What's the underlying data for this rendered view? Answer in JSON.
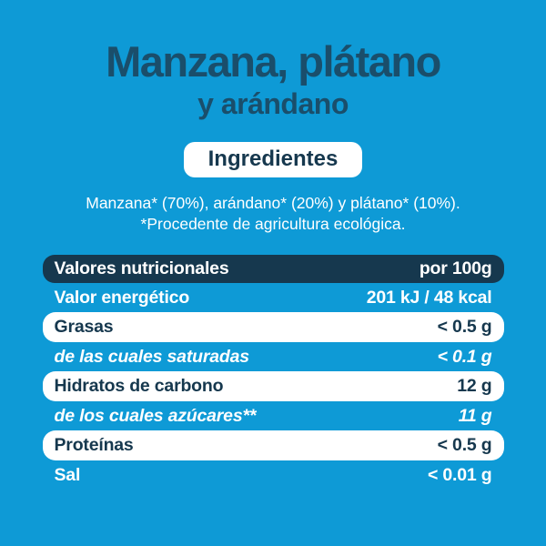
{
  "colors": {
    "background": "#0E9AD6",
    "navy": "#16384E",
    "title_text": "#1A4E6B",
    "white": "#FFFFFF"
  },
  "product": {
    "title_line1": "Manzana, plátano",
    "title_line2": "y arándano"
  },
  "ingredients": {
    "badge_label": "Ingredientes",
    "line1": "Manzana* (70%), arándano* (20%) y plátano* (10%).",
    "line2": "*Procedente de agricultura ecológica."
  },
  "nutrition_table": {
    "header": {
      "label": "Valores nutricionales",
      "value": "por 100g"
    },
    "rows": [
      {
        "label": "Valor energético",
        "value": "201 kJ / 48 kcal"
      },
      {
        "label": "Grasas",
        "value": "< 0.5 g"
      },
      {
        "label": "de las cuales saturadas",
        "value": "< 0.1 g"
      },
      {
        "label": "Hidratos de carbono",
        "value": "12 g"
      },
      {
        "label": "de los cuales azúcares**",
        "value": "11 g"
      },
      {
        "label": "Proteínas",
        "value": "< 0.5 g"
      },
      {
        "label": "Sal",
        "value": "< 0.01 g"
      }
    ]
  }
}
